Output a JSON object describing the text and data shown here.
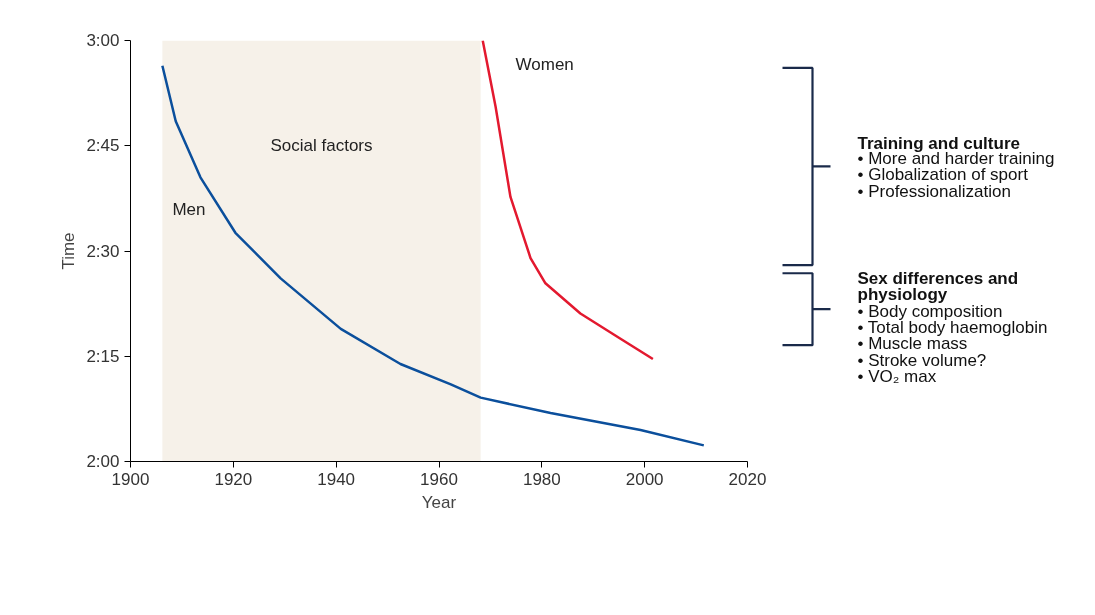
{
  "chart_data": [
    {
      "type": "line",
      "xlabel": "Year",
      "ylabel": "Time",
      "xlim": [
        1900,
        2020
      ],
      "xticks": [
        1900,
        1920,
        1940,
        1960,
        1980,
        2000,
        2020
      ],
      "ylim": [
        120,
        180
      ],
      "yticks": [
        {
          "value": 120,
          "label": "2:00"
        },
        {
          "value": 135,
          "label": "2:15"
        },
        {
          "value": 150,
          "label": "2:30"
        },
        {
          "value": 165,
          "label": "2:45"
        },
        {
          "value": 180,
          "label": "3:00"
        }
      ],
      "grid": false,
      "marker": "none",
      "line_style": "solid",
      "series": [
        {
          "name": "Men",
          "color": "#0b4f9c",
          "x": [
            1906.2,
            1908.8,
            1913.6,
            1920.4,
            1929.2,
            1940.9,
            1952.5,
            1962.3,
            1968.1,
            1981.7,
            1999.2,
            2011.5
          ],
          "values": [
            176.4,
            168.5,
            160.5,
            152.6,
            146.1,
            138.9,
            133.9,
            131.0,
            129.1,
            126.9,
            124.5,
            122.3
          ]
        },
        {
          "name": "Women",
          "color": "#e3192f",
          "x": [
            1968.5,
            1971.0,
            1973.9,
            1977.8,
            1980.7,
            1987.5,
            1995.3,
            2001.6
          ],
          "values": [
            180,
            170.6,
            157.7,
            149.0,
            145.4,
            141.1,
            137.5,
            134.6
          ]
        }
      ],
      "bands": [
        {
          "axis": "x",
          "from": 1906.2,
          "to": 1968.1,
          "label": "Social factors",
          "color": "#f6f1e9"
        }
      ]
    },
    {
      "type": "other",
      "annotations": [
        "Training and culture",
        "• More and harder training",
        "• Globalization of sport",
        "• Professionalization",
        "Sex differences and physiology",
        "• Body composition",
        "• Total body haemoglobin",
        "• Muscle mass",
        "• Stroke volume?",
        "• VO₂ max"
      ]
    }
  ]
}
